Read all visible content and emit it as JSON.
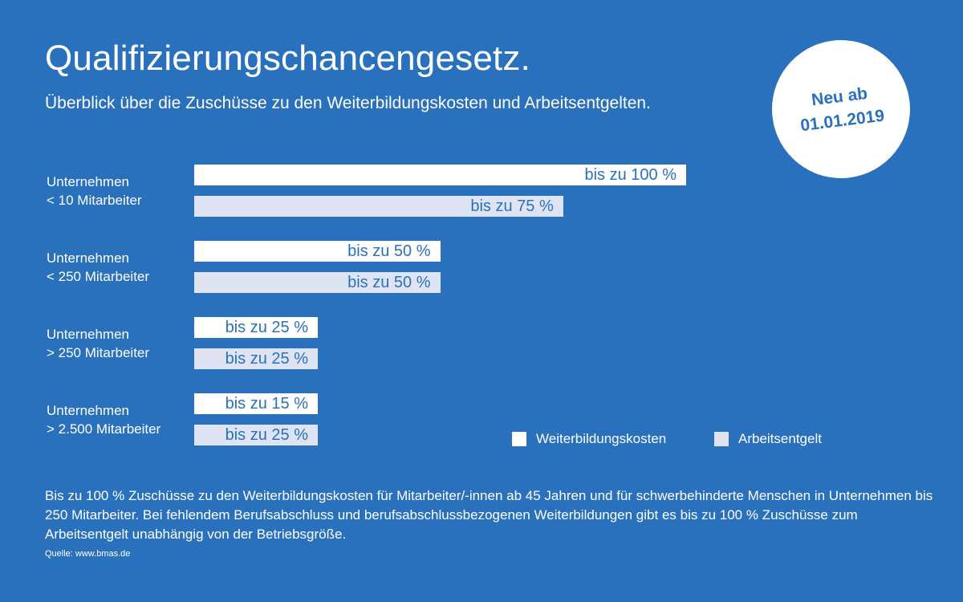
{
  "header": {
    "title": "Qualifizierungschancengesetz.",
    "subtitle": "Überblick über die Zuschüsse zu den Weiterbildungskosten und Arbeitsentgelten."
  },
  "badge": {
    "line1": "Neu ab",
    "line2": "01.01.2019"
  },
  "colors": {
    "background": "#2a71bd",
    "weiterbildungskosten": "#ffffff",
    "arbeitsentgelt": "#dfe4f5",
    "bar_text": "#2a71bd"
  },
  "chart_data": {
    "type": "bar",
    "orientation": "horizontal",
    "unit": "%",
    "xlim": [
      0,
      100
    ],
    "categories": [
      [
        "Unternehmen",
        "< 10 Mitarbeiter"
      ],
      [
        "Unternehmen",
        "< 250 Mitarbeiter"
      ],
      [
        "Unternehmen",
        "> 250 Mitarbeiter"
      ],
      [
        "Unternehmen",
        "> 2.500 Mitarbeiter"
      ]
    ],
    "series": [
      {
        "name": "Weiterbildungskosten",
        "values": [
          100,
          50,
          25,
          15
        ],
        "labels": [
          "bis zu 100 %",
          "bis zu 50 %",
          "bis zu 25 %",
          "bis zu 15 %"
        ]
      },
      {
        "name": "Arbeitsentgelt",
        "values": [
          75,
          50,
          25,
          25
        ],
        "labels": [
          "bis zu 75 %",
          "bis zu 50 %",
          "bis zu 25 %",
          "bis zu 25 %"
        ]
      }
    ],
    "legend": "bottom-right",
    "grid": false
  },
  "footnote": "Bis zu 100 % Zuschüsse zu den Weiterbildungskosten für Mitarbeiter/-innen ab 45 Jahren und für schwerbehinderte Menschen in Unternehmen bis 250 Mitarbeiter. Bei fehlendem Berufsabschluss und berufsabschlussbezogenen Weiterbildungen gibt es bis zu 100 % Zuschüsse zum Arbeitsentgelt unabhängig von der Betriebsgröße.",
  "source": "Quelle: www.bmas.de"
}
